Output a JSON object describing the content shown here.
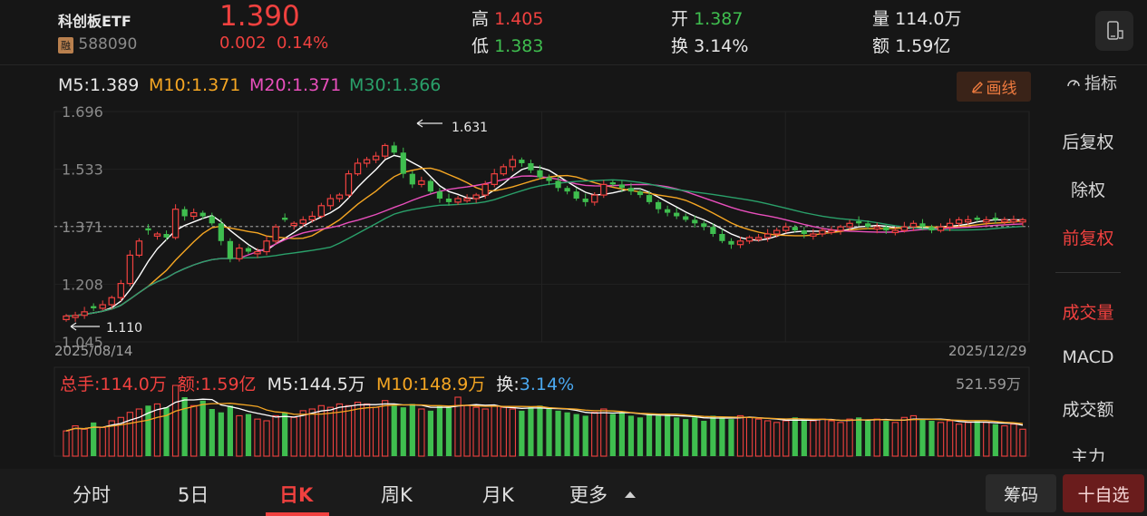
{
  "security": {
    "name": "科创板ETF",
    "margin_badge": "融",
    "code": "588090",
    "price": "1.390",
    "change": "0.002",
    "change_pct": "0.14%"
  },
  "quote": {
    "high_label": "高",
    "high": "1.405",
    "low_label": "低",
    "low": "1.383",
    "open_label": "开",
    "open": "1.387",
    "turnover_label": "换",
    "turnover": "3.14%",
    "volume_label": "量",
    "volume": "114.0万",
    "amount_label": "额",
    "amount": "1.59亿"
  },
  "ma_legend": {
    "m5": "M5:1.389",
    "m10": "M10:1.371",
    "m20": "M20:1.371",
    "m30": "M30:1.366"
  },
  "toolbar": {
    "draw_label": "画线",
    "indicator_label": "指标"
  },
  "colors": {
    "up": "#f0413f",
    "down": "#3fbe4f",
    "ma5": "#ffffff",
    "ma10": "#f5a623",
    "ma20": "#e84fbc",
    "ma30": "#2aa06a",
    "background": "#161616"
  },
  "chart_data": {
    "type": "candlestick",
    "price_ticks": [
      "1.696",
      "1.533",
      "1.371",
      "1.208",
      "1.045"
    ],
    "ylim": [
      1.045,
      1.696
    ],
    "start_date": "2025/08/14",
    "end_date": "2025/12/29",
    "max_label": "1.631",
    "min_label": "1.110",
    "reference_price": 1.371,
    "close": [
      1.118,
      1.12,
      1.13,
      1.14,
      1.15,
      1.17,
      1.21,
      1.29,
      1.33,
      1.36,
      1.35,
      1.34,
      1.42,
      1.4,
      1.41,
      1.4,
      1.38,
      1.33,
      1.28,
      1.31,
      1.3,
      1.3,
      1.33,
      1.37,
      1.39,
      1.38,
      1.39,
      1.4,
      1.43,
      1.45,
      1.46,
      1.52,
      1.55,
      1.56,
      1.57,
      1.6,
      1.58,
      1.52,
      1.49,
      1.5,
      1.47,
      1.45,
      1.44,
      1.45,
      1.45,
      1.46,
      1.49,
      1.52,
      1.54,
      1.56,
      1.55,
      1.53,
      1.51,
      1.5,
      1.48,
      1.47,
      1.45,
      1.44,
      1.46,
      1.49,
      1.49,
      1.48,
      1.47,
      1.46,
      1.44,
      1.42,
      1.41,
      1.4,
      1.39,
      1.38,
      1.37,
      1.35,
      1.33,
      1.32,
      1.33,
      1.34,
      1.34,
      1.35,
      1.36,
      1.37,
      1.36,
      1.35,
      1.35,
      1.36,
      1.36,
      1.37,
      1.38,
      1.38,
      1.37,
      1.37,
      1.36,
      1.36,
      1.37,
      1.38,
      1.37,
      1.36,
      1.37,
      1.38,
      1.39,
      1.39,
      1.39,
      1.39,
      1.39,
      1.39,
      1.39,
      1.39
    ],
    "up": [
      true,
      true,
      true,
      false,
      true,
      true,
      true,
      true,
      true,
      false,
      true,
      false,
      true,
      false,
      true,
      false,
      false,
      false,
      false,
      true,
      false,
      true,
      true,
      true,
      false,
      true,
      true,
      true,
      true,
      true,
      true,
      true,
      true,
      true,
      true,
      true,
      false,
      false,
      false,
      true,
      false,
      false,
      false,
      true,
      true,
      true,
      true,
      true,
      true,
      true,
      false,
      false,
      false,
      false,
      false,
      false,
      false,
      false,
      true,
      true,
      false,
      false,
      false,
      false,
      false,
      false,
      false,
      false,
      false,
      false,
      false,
      false,
      false,
      false,
      true,
      true,
      true,
      true,
      true,
      true,
      false,
      false,
      true,
      true,
      true,
      true,
      true,
      false,
      false,
      true,
      false,
      true,
      true,
      true,
      false,
      false,
      true,
      true,
      true,
      true,
      false,
      true,
      false,
      true,
      true,
      true
    ],
    "volume_summary": {
      "total_label": "总手:114.0万",
      "amount_label": "额:1.59亿",
      "m5_label": "M5:144.5万",
      "m10_label": "M10:148.9万",
      "turnover_label": "换:",
      "turnover_value": "3.14%",
      "max_label": "521.59万"
    },
    "volume": [
      150,
      180,
      160,
      200,
      170,
      210,
      230,
      260,
      280,
      300,
      310,
      290,
      420,
      350,
      300,
      330,
      280,
      260,
      300,
      240,
      250,
      220,
      210,
      240,
      260,
      230,
      270,
      280,
      300,
      290,
      310,
      300,
      320,
      310,
      290,
      330,
      300,
      290,
      310,
      280,
      270,
      300,
      290,
      350,
      300,
      290,
      280,
      300,
      290,
      280,
      270,
      290,
      300,
      280,
      270,
      260,
      250,
      240,
      260,
      280,
      250,
      260,
      240,
      230,
      250,
      240,
      250,
      230,
      220,
      230,
      210,
      240,
      230,
      220,
      240,
      230,
      220,
      210,
      200,
      210,
      230,
      220,
      210,
      220,
      210,
      200,
      220,
      230,
      210,
      220,
      210,
      200,
      230,
      240,
      220,
      210,
      200,
      210,
      190,
      200,
      210,
      200,
      190,
      180,
      190,
      160
    ]
  },
  "side_menu": {
    "items": [
      "后复权",
      "除权",
      "前复权",
      "成交量",
      "MACD",
      "成交额",
      "主力"
    ]
  },
  "tabs": [
    "分时",
    "5日",
    "日K",
    "周K",
    "月K",
    "更多"
  ],
  "buttons": {
    "chips": "筹码",
    "add_watch": "十自选"
  }
}
